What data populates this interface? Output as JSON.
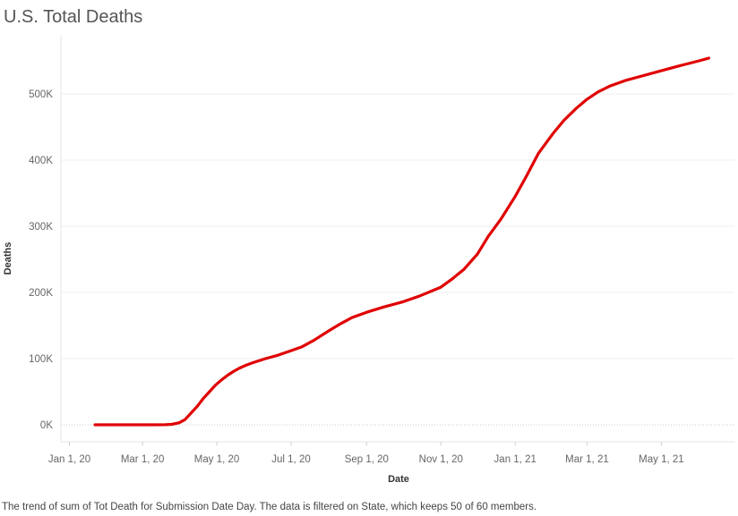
{
  "chart_data": {
    "type": "line",
    "title": "U.S. Total Deaths",
    "xlabel": "Date",
    "ylabel": "Deaths",
    "caption": "The trend of sum of Tot Death for Submission Date Day. The data is filtered on State, which keeps 50 of 60 members.",
    "x_ticks": [
      "Jan 1, 20",
      "Mar 1, 20",
      "May 1, 20",
      "Jul 1, 20",
      "Sep 1, 20",
      "Nov 1, 20",
      "Jan 1, 21",
      "Mar 1, 21",
      "May 1, 21"
    ],
    "x_tick_dates": [
      "2020-01-01",
      "2020-03-01",
      "2020-05-01",
      "2020-07-01",
      "2020-09-01",
      "2020-11-01",
      "2021-01-01",
      "2021-03-01",
      "2021-05-01"
    ],
    "y_ticks": [
      "0K",
      "100K",
      "200K",
      "300K",
      "400K",
      "500K"
    ],
    "ylim": [
      0,
      560000
    ],
    "xlim": [
      "2019-12-25",
      "2021-06-30"
    ],
    "grid": true,
    "line_color": "#e00000",
    "series": [
      {
        "points": [
          [
            "2020-01-22",
            0
          ],
          [
            "2020-02-15",
            0
          ],
          [
            "2020-03-10",
            0
          ],
          [
            "2020-03-20",
            200
          ],
          [
            "2020-03-25",
            700
          ],
          [
            "2020-03-31",
            3000
          ],
          [
            "2020-04-05",
            8000
          ],
          [
            "2020-04-10",
            18000
          ],
          [
            "2020-04-15",
            28000
          ],
          [
            "2020-04-20",
            40000
          ],
          [
            "2020-04-25",
            50000
          ],
          [
            "2020-04-30",
            60000
          ],
          [
            "2020-05-05",
            68000
          ],
          [
            "2020-05-10",
            75000
          ],
          [
            "2020-05-15",
            81000
          ],
          [
            "2020-05-20",
            86000
          ],
          [
            "2020-05-25",
            90000
          ],
          [
            "2020-05-31",
            94000
          ],
          [
            "2020-06-10",
            100000
          ],
          [
            "2020-06-20",
            105000
          ],
          [
            "2020-07-01",
            112000
          ],
          [
            "2020-07-10",
            118000
          ],
          [
            "2020-07-20",
            128000
          ],
          [
            "2020-08-01",
            142000
          ],
          [
            "2020-08-10",
            152000
          ],
          [
            "2020-08-20",
            162000
          ],
          [
            "2020-09-01",
            170000
          ],
          [
            "2020-09-15",
            178000
          ],
          [
            "2020-10-01",
            186000
          ],
          [
            "2020-10-15",
            195000
          ],
          [
            "2020-11-01",
            208000
          ],
          [
            "2020-11-10",
            220000
          ],
          [
            "2020-11-20",
            235000
          ],
          [
            "2020-12-01",
            258000
          ],
          [
            "2020-12-10",
            285000
          ],
          [
            "2020-12-20",
            310000
          ],
          [
            "2021-01-01",
            345000
          ],
          [
            "2021-01-10",
            375000
          ],
          [
            "2021-01-20",
            410000
          ],
          [
            "2021-02-01",
            440000
          ],
          [
            "2021-02-10",
            460000
          ],
          [
            "2021-02-20",
            478000
          ],
          [
            "2021-03-01",
            492000
          ],
          [
            "2021-03-10",
            503000
          ],
          [
            "2021-03-20",
            512000
          ],
          [
            "2021-04-01",
            520000
          ],
          [
            "2021-04-15",
            527000
          ],
          [
            "2021-05-01",
            535000
          ],
          [
            "2021-05-15",
            542000
          ],
          [
            "2021-06-01",
            550000
          ],
          [
            "2021-06-09",
            554000
          ]
        ]
      }
    ]
  }
}
